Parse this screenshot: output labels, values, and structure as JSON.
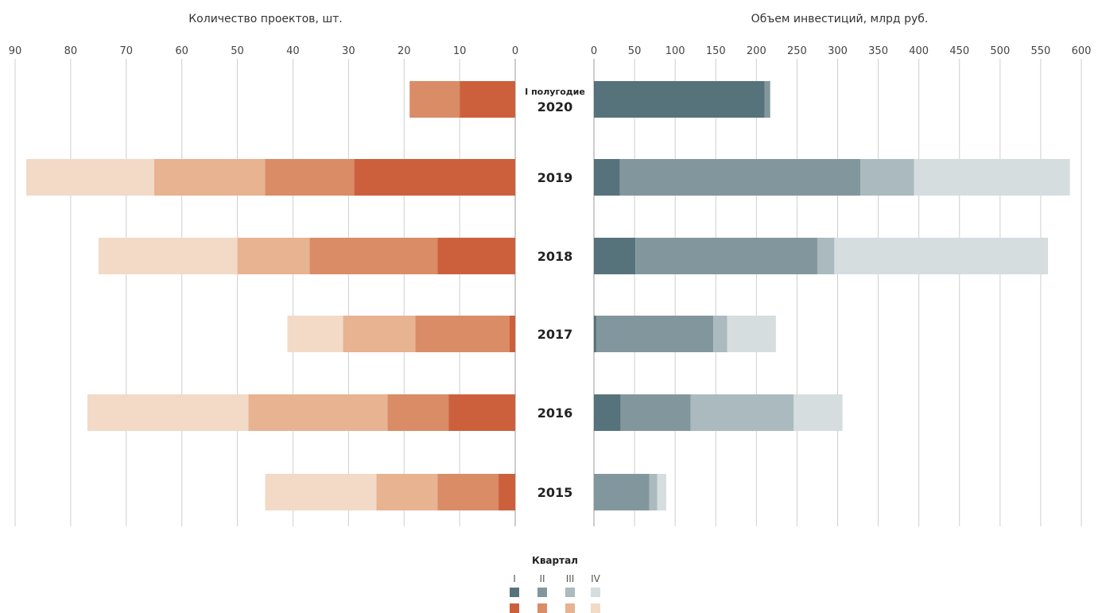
{
  "chart_data": [
    {
      "type": "bar",
      "orientation": "horizontal-reversed",
      "title": "Количество проектов, шт.",
      "xlim": [
        0,
        90
      ],
      "ticks": [
        "90",
        "80",
        "70",
        "60",
        "50",
        "40",
        "30",
        "20",
        "10",
        "0"
      ],
      "categories": [
        "2020",
        "2019",
        "2018",
        "2017",
        "2016",
        "2015"
      ],
      "series": [
        {
          "name": "I",
          "color": "#cc603d",
          "values": [
            10,
            29,
            14,
            1,
            12,
            3
          ]
        },
        {
          "name": "II",
          "color": "#d98c65",
          "values": [
            9,
            16,
            23,
            17,
            11,
            11
          ]
        },
        {
          "name": "III",
          "color": "#e7b391",
          "values": [
            0,
            20,
            13,
            13,
            25,
            11
          ]
        },
        {
          "name": "IV",
          "color": "#f2dac7",
          "values": [
            0,
            23,
            25,
            10,
            29,
            20
          ]
        }
      ]
    },
    {
      "type": "bar",
      "orientation": "horizontal",
      "title": "Объем инвестиций, млрд руб.",
      "xlim": [
        0,
        600
      ],
      "ticks": [
        "0",
        "50",
        "100",
        "150",
        "200",
        "250",
        "300",
        "350",
        "400",
        "450",
        "500",
        "550",
        "600"
      ],
      "categories": [
        "2020",
        "2019",
        "2018",
        "2017",
        "2016",
        "2015"
      ],
      "series": [
        {
          "name": "I",
          "color": "#56737b",
          "values": [
            210,
            32,
            51,
            3,
            33,
            0
          ]
        },
        {
          "name": "II",
          "color": "#82979d",
          "values": [
            7,
            296,
            224,
            144,
            86,
            68
          ]
        },
        {
          "name": "III",
          "color": "#abbabe",
          "values": [
            0,
            66,
            21,
            17,
            127,
            10
          ]
        },
        {
          "name": "IV",
          "color": "#d5dddf",
          "values": [
            0,
            192,
            263,
            60,
            60,
            11
          ]
        }
      ]
    }
  ],
  "category_labels": [
    {
      "prefix": "I полугодие",
      "year": "2020"
    },
    {
      "prefix": "",
      "year": "2019"
    },
    {
      "prefix": "",
      "year": "2018"
    },
    {
      "prefix": "",
      "year": "2017"
    },
    {
      "prefix": "",
      "year": "2016"
    },
    {
      "prefix": "",
      "year": "2015"
    }
  ],
  "legend": {
    "title": "Квартал",
    "labels": [
      "I",
      "II",
      "III",
      "IV"
    ],
    "colors_investment": [
      "#56737b",
      "#82979d",
      "#abbabe",
      "#d5dddf"
    ],
    "colors_projects": [
      "#cc603d",
      "#d98c65",
      "#e7b391",
      "#f2dac7"
    ]
  }
}
